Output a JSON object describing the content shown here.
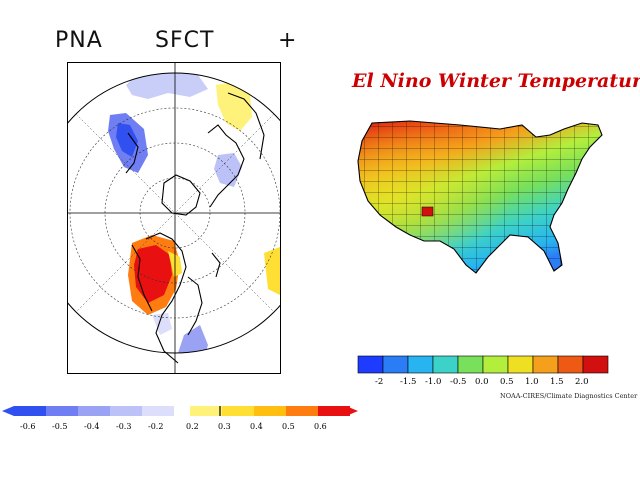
{
  "left_panel": {
    "label_index": "PNA",
    "label_field": "SFCT",
    "label_sign": "+",
    "colorbar": {
      "negative_ticks": [
        "-0.6",
        "-0.5",
        "-0.4",
        "-0.3",
        "-0.2"
      ],
      "positive_ticks": [
        "0.2",
        "0.3",
        "0.4",
        "0.5",
        "0.6"
      ],
      "negative_colors": [
        "#3050f0",
        "#6f7ef2",
        "#9aa2f4",
        "#bcc1f7",
        "#dcdefb"
      ],
      "positive_colors": [
        "#fff27a",
        "#ffdf33",
        "#ffbe10",
        "#ff7c10",
        "#e81010"
      ]
    }
  },
  "right_panel": {
    "title": "El Nino Winter Temperatures",
    "colorbar": {
      "ticks": [
        "-2",
        "-1.5",
        "-1.0",
        "-0.5",
        "0.0",
        "0.5",
        "1.0",
        "1.5",
        "2.0"
      ],
      "colors": [
        "#1e3cff",
        "#2a7df5",
        "#28b4f0",
        "#3cd2c8",
        "#78e05a",
        "#b4ee3c",
        "#eedf22",
        "#f5a01c",
        "#ee5a14",
        "#d21010"
      ]
    },
    "credit": "NOAA-CIRES/Climate Diagnostics Center"
  }
}
